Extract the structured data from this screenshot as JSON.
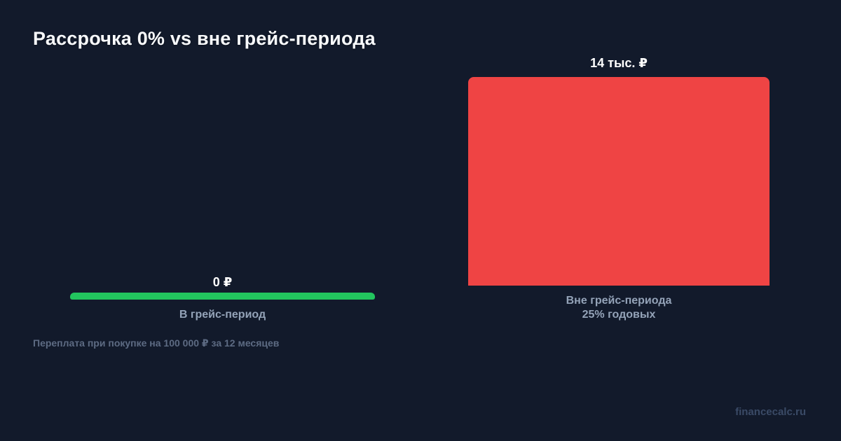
{
  "title": "Рассрочка 0% vs вне грейс-периода",
  "bars": {
    "grace": {
      "value_label": "0 ₽",
      "category": "В грейс-период",
      "color": "#22c55e"
    },
    "outside": {
      "value_label": "14 тыс. ₽",
      "category_line1": "Вне грейс-периода",
      "category_line2": "25% годовых",
      "color": "#ef4444"
    }
  },
  "footnote": "Переплата при покупке на 100 000 ₽ за 12 месяцев",
  "watermark": "financecalc.ru",
  "colors": {
    "background": "#121a2b",
    "title_text": "#f8fafc",
    "value_text": "#ffffff",
    "category_text": "#94a3b8",
    "footnote_text": "#5d6b83",
    "watermark_text": "#3a4a66"
  },
  "chart_data": {
    "type": "bar",
    "title": "Рассрочка 0% vs вне грейс-периода",
    "categories": [
      "В грейс-период",
      "Вне грейс-периода 25% годовых"
    ],
    "values": [
      0,
      14000
    ],
    "value_labels": [
      "0 ₽",
      "14 тыс. ₽"
    ],
    "series_colors": [
      "#22c55e",
      "#ef4444"
    ],
    "xlabel": "",
    "ylabel": "",
    "ylim": [
      0,
      14000
    ],
    "grid": false,
    "legend": false,
    "annotations": [
      "Переплата при покупке на 100 000 ₽ за 12 месяцев",
      "financecalc.ru"
    ]
  }
}
